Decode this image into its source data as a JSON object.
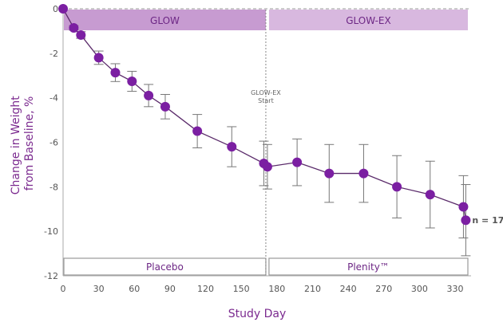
{
  "chart_data": {
    "type": "line",
    "xlabel": "Study Day",
    "ylabel": [
      "Change in Weight",
      "from Baseline, %"
    ],
    "xlim": [
      0,
      340
    ],
    "ylim": [
      -12,
      0
    ],
    "xticks": [
      0,
      30,
      60,
      90,
      120,
      150,
      180,
      210,
      240,
      270,
      300,
      330
    ],
    "yticks": [
      0,
      -2,
      -4,
      -6,
      -8,
      -10,
      -12
    ],
    "grid": false,
    "phases_top": [
      {
        "label": "GLOW",
        "start": 0,
        "end": 170
      },
      {
        "label": "GLOW-EX",
        "start": 172,
        "end": 340
      }
    ],
    "phases_bottom": [
      {
        "label": "Placebo",
        "start": 0,
        "end": 170
      },
      {
        "label": "Plenity™",
        "start": 172,
        "end": 340
      }
    ],
    "annotation_line": {
      "x": 170,
      "label": [
        "GLOW-EX",
        "Start"
      ]
    },
    "end_label": "n = 17",
    "series": [
      {
        "color": "#7b1fa2",
        "x": [
          0,
          9,
          15,
          30,
          44,
          58,
          72,
          86,
          113,
          142,
          169,
          172,
          197,
          224,
          253,
          281,
          309,
          337,
          339
        ],
        "y": [
          0,
          -0.86,
          -1.18,
          -2.2,
          -2.87,
          -3.26,
          -3.9,
          -4.4,
          -5.5,
          -6.2,
          -6.95,
          -7.1,
          -6.9,
          -7.4,
          -7.4,
          -8.0,
          -8.35,
          -8.9,
          -9.5
        ],
        "err": [
          0,
          0.1,
          0.15,
          0.3,
          0.4,
          0.45,
          0.5,
          0.55,
          0.75,
          0.9,
          1.0,
          1.0,
          1.05,
          1.3,
          1.3,
          1.4,
          1.5,
          1.4,
          1.6
        ]
      }
    ]
  }
}
